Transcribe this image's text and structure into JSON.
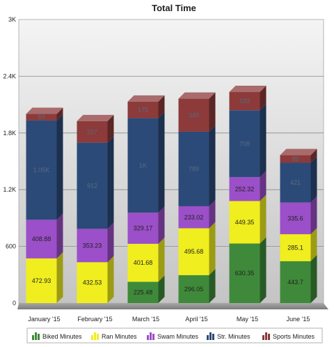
{
  "chart_data": {
    "type": "bar",
    "stacked": true,
    "title": "Total Time",
    "categories": [
      "January '15",
      "February '15",
      "March '15",
      "April '15",
      "May '15",
      "June '15"
    ],
    "ylim": [
      0,
      3000
    ],
    "yticks": [
      0,
      600,
      1200,
      1800,
      2400,
      3000
    ],
    "ytick_labels": [
      "0",
      "600",
      "1.2K",
      "1.8K",
      "2.4K",
      "3K"
    ],
    "grid": true,
    "legend_position": "bottom",
    "series": [
      {
        "name": "Biked Minutes",
        "color": "#3f8a3a",
        "values": [
          0,
          0,
          225.48,
          296.05,
          630.35,
          443.7
        ],
        "labels": [
          "",
          "",
          "225.48",
          "296.05",
          "630.35",
          "443.7"
        ]
      },
      {
        "name": "Ran Minutes",
        "color": "#f0ee1e",
        "values": [
          472.93,
          432.53,
          401.68,
          495.68,
          449.35,
          285.1
        ],
        "labels": [
          "472.93",
          "432.53",
          "401.68",
          "495.68",
          "449.35",
          "285.1"
        ]
      },
      {
        "name": "Swam Minutes",
        "color": "#9b4fc8",
        "values": [
          408.88,
          353.23,
          329.17,
          233.02,
          252.32,
          335.6
        ],
        "labels": [
          "408.88",
          "353.23",
          "329.17",
          "233.02",
          "252.32",
          "335.6"
        ]
      },
      {
        "name": "Str. Minutes",
        "color": "#2c4a78",
        "values": [
          1050,
          912,
          1000,
          789,
          708,
          421
        ],
        "labels": [
          "1.05K",
          "912",
          "1K",
          "789",
          "708",
          "421"
        ]
      },
      {
        "name": "Sports Minutes",
        "color": "#8c3a3a",
        "values": [
          69,
          227,
          175,
          349,
          193,
          80
        ],
        "labels": [
          "69",
          "227",
          "175",
          "349",
          "193",
          "80"
        ]
      }
    ]
  }
}
